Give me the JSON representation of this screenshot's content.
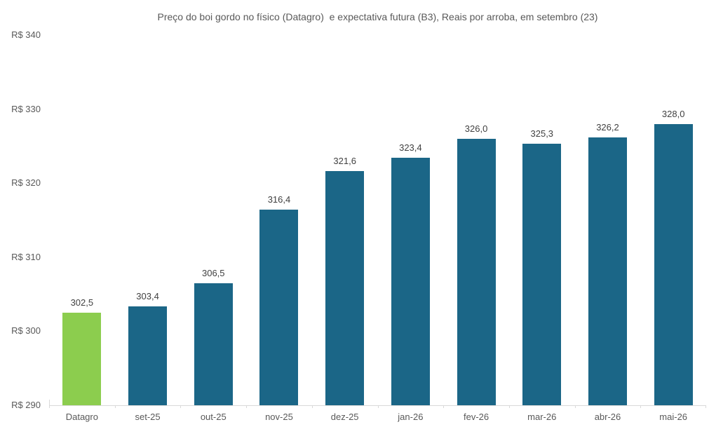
{
  "title": "Preço do boi gordo no físico (Datagro)  e expectativa futura (B3), Reais por arroba, em setembro (23)",
  "chart_data": {
    "type": "bar",
    "title": "Preço do boi gordo no físico (Datagro)  e expectativa futura (B3), Reais por arroba, em setembro (23)",
    "categories": [
      "Datagro",
      "set-25",
      "out-25",
      "nov-25",
      "dez-25",
      "jan-26",
      "fev-26",
      "mar-26",
      "abr-26",
      "mai-26"
    ],
    "values": [
      302.5,
      303.4,
      306.5,
      316.4,
      321.6,
      323.4,
      326.0,
      325.3,
      326.2,
      328.0
    ],
    "value_labels": [
      "302,5",
      "303,4",
      "306,5",
      "316,4",
      "321,6",
      "323,4",
      "326,0",
      "325,3",
      "326,2",
      "328,0"
    ],
    "xlabel": "",
    "ylabel": "",
    "ylim": [
      290,
      340
    ],
    "y_ticks": [
      {
        "value": 340,
        "label": "R$ 340"
      },
      {
        "value": 330,
        "label": "R$ 330"
      },
      {
        "value": 320,
        "label": "R$ 320"
      },
      {
        "value": 310,
        "label": "R$ 310"
      },
      {
        "value": 300,
        "label": "R$ 300"
      },
      {
        "value": 290,
        "label": "R$ 290"
      }
    ],
    "grid": false,
    "legend": "none",
    "colors": {
      "highlight_bar": "#8ccd4e",
      "default_bar": "#1b6687",
      "axis_line": "#d9d9d9",
      "title_text": "#595959",
      "axis_text": "#595959",
      "value_text": "#404040"
    },
    "highlight_index": 0
  }
}
